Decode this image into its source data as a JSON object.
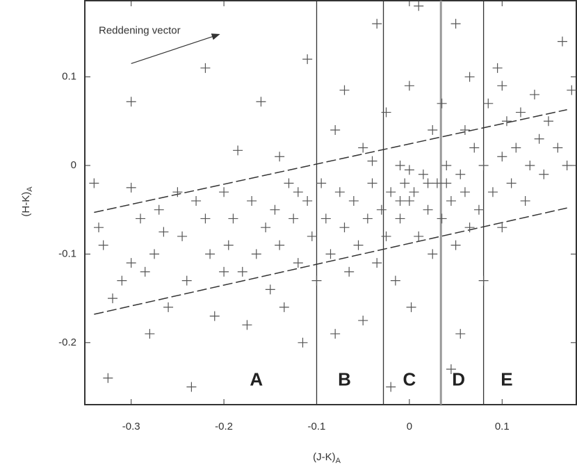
{
  "chart_data": {
    "type": "scatter",
    "xlabel": "(J-K)",
    "xlabel_sub": "A",
    "ylabel": "(H-K)",
    "ylabel_sub": "A",
    "xlim": [
      -0.35,
      0.18
    ],
    "ylim": [
      -0.27,
      0.186
    ],
    "xticks": [
      -0.3,
      -0.2,
      -0.1,
      0,
      0.1
    ],
    "yticks": [
      -0.2,
      -0.1,
      0,
      0.1
    ],
    "series": [
      {
        "color": "#555555",
        "x": [
          -0.34,
          -0.335,
          -0.33,
          -0.32,
          -0.325,
          -0.31,
          -0.3,
          -0.3,
          -0.29,
          -0.285,
          -0.28,
          -0.275,
          -0.27,
          -0.265,
          -0.26,
          -0.25,
          -0.245,
          -0.24,
          -0.235,
          -0.23,
          -0.22,
          -0.22,
          -0.215,
          -0.21,
          -0.2,
          -0.195,
          -0.19,
          -0.185,
          -0.18,
          -0.175,
          -0.17,
          -0.165,
          -0.16,
          -0.155,
          -0.15,
          -0.145,
          -0.14,
          -0.14,
          -0.135,
          -0.13,
          -0.125,
          -0.12,
          -0.115,
          -0.11,
          -0.11,
          -0.105,
          -0.1,
          -0.095,
          -0.09,
          -0.085,
          -0.08,
          -0.08,
          -0.075,
          -0.07,
          -0.07,
          -0.065,
          -0.06,
          -0.055,
          -0.05,
          -0.05,
          -0.045,
          -0.04,
          -0.035,
          -0.035,
          -0.03,
          -0.025,
          -0.025,
          -0.02,
          -0.015,
          -0.01,
          -0.01,
          -0.005,
          0,
          0,
          0.002,
          0.005,
          0.01,
          0.01,
          0.015,
          0.02,
          0.025,
          0.025,
          0.03,
          0.035,
          0.035,
          0.04,
          0.045,
          0.05,
          0.05,
          0.055,
          0.06,
          0.065,
          0.065,
          0.07,
          0.075,
          0.08,
          0.085,
          0.09,
          0.095,
          0.1,
          0.1,
          0.105,
          0.11,
          0.115,
          0.12,
          0.125,
          0.13,
          0.135,
          0.14,
          0.145,
          0.15,
          0.16,
          0.165,
          0.17,
          0.175,
          -0.3,
          -0.2,
          -0.12,
          0,
          0.02,
          -0.01,
          0.04,
          0.06,
          -0.04,
          0.1,
          0.08,
          0.055,
          0.045,
          -0.02
        ],
        "y": [
          -0.02,
          -0.07,
          -0.09,
          -0.15,
          -0.24,
          -0.13,
          0.072,
          -0.11,
          -0.06,
          -0.12,
          -0.19,
          -0.1,
          -0.05,
          -0.075,
          -0.16,
          -0.03,
          -0.08,
          -0.13,
          -0.25,
          -0.04,
          0.11,
          -0.06,
          -0.1,
          -0.17,
          -0.03,
          -0.09,
          -0.06,
          0.017,
          -0.12,
          -0.18,
          -0.04,
          -0.1,
          0.072,
          -0.07,
          -0.14,
          -0.05,
          0.01,
          -0.09,
          -0.16,
          -0.02,
          -0.06,
          -0.11,
          -0.2,
          0.12,
          -0.04,
          -0.08,
          -0.13,
          -0.02,
          -0.06,
          -0.1,
          0.04,
          -0.19,
          -0.03,
          0.085,
          -0.07,
          -0.12,
          -0.04,
          -0.09,
          0.02,
          -0.175,
          -0.06,
          -0.02,
          0.16,
          -0.11,
          -0.05,
          0.06,
          -0.08,
          -0.03,
          -0.13,
          0,
          -0.06,
          -0.02,
          0.09,
          -0.04,
          -0.16,
          -0.03,
          0.18,
          -0.08,
          -0.01,
          -0.05,
          0.04,
          -0.1,
          -0.02,
          0.07,
          -0.06,
          0,
          -0.04,
          0.16,
          -0.09,
          -0.01,
          -0.03,
          0.1,
          -0.07,
          0.02,
          -0.05,
          0,
          0.07,
          -0.03,
          0.11,
          0.01,
          -0.07,
          0.05,
          -0.02,
          0.02,
          0.06,
          -0.04,
          0,
          0.08,
          0.03,
          -0.01,
          0.05,
          0.02,
          0.14,
          0,
          0.085,
          -0.025,
          -0.12,
          -0.03,
          -0.005,
          -0.02,
          -0.04,
          -0.02,
          0.04,
          0.005,
          0.09,
          -0.13,
          -0.19,
          -0.23,
          -0.25
        ]
      }
    ],
    "bands": [
      {
        "x": [
          -0.34,
          0.17
        ],
        "y": [
          -0.053,
          0.063
        ]
      },
      {
        "x": [
          -0.34,
          0.17
        ],
        "y": [
          -0.168,
          -0.048
        ]
      }
    ],
    "dividers": [
      -0.1,
      -0.028,
      0.034,
      0.08
    ],
    "regions": [
      {
        "label": "A",
        "x": -0.165,
        "y": -0.243
      },
      {
        "label": "B",
        "x": -0.07,
        "y": -0.243
      },
      {
        "label": "C",
        "x": 0,
        "y": -0.243
      },
      {
        "label": "D",
        "x": 0.053,
        "y": -0.243
      },
      {
        "label": "E",
        "x": 0.105,
        "y": -0.243
      }
    ],
    "annotation": {
      "text": "Reddening vector",
      "x": -0.335,
      "y": 0.152
    },
    "arrow": {
      "x": [
        -0.3,
        -0.205
      ],
      "y": [
        0.115,
        0.148
      ]
    }
  }
}
